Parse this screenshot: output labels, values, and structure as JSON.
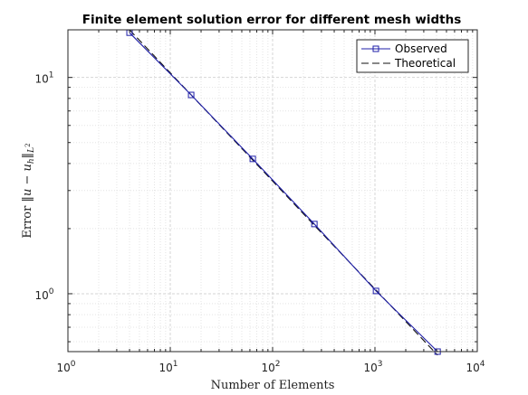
{
  "chart_data": {
    "type": "line",
    "title": "Finite element solution error for different mesh widths",
    "xlabel": "Number of Elements",
    "ylabel": "Error ‖u − u_h‖_{L²}",
    "xscale": "log",
    "yscale": "log",
    "xlim": [
      1,
      10000
    ],
    "ylim": [
      0.54,
      16.6
    ],
    "grid": true,
    "legend_position": "top-right",
    "xticks": [
      {
        "value": 1,
        "mantissa": "10",
        "exp": "0"
      },
      {
        "value": 10,
        "mantissa": "10",
        "exp": "1"
      },
      {
        "value": 100,
        "mantissa": "10",
        "exp": "2"
      },
      {
        "value": 1000,
        "mantissa": "10",
        "exp": "3"
      },
      {
        "value": 10000,
        "mantissa": "10",
        "exp": "4"
      }
    ],
    "yticks": [
      {
        "value": 1,
        "mantissa": "10",
        "exp": "0"
      },
      {
        "value": 10,
        "mantissa": "10",
        "exp": "1"
      }
    ],
    "series": [
      {
        "name": "Observed",
        "color": "#1f1fa8",
        "style": "solid",
        "marker": "square",
        "x": [
          4,
          16,
          64,
          256,
          1024,
          4096
        ],
        "y": [
          16.1,
          8.3,
          4.2,
          2.1,
          1.03,
          0.54
        ]
      },
      {
        "name": "Theoretical",
        "color": "#111111",
        "style": "dashed",
        "marker": "none",
        "x": [
          4,
          16,
          64,
          256,
          1024,
          4096
        ],
        "y": [
          16.6,
          8.3,
          4.15,
          2.07,
          1.04,
          0.52
        ]
      }
    ]
  }
}
